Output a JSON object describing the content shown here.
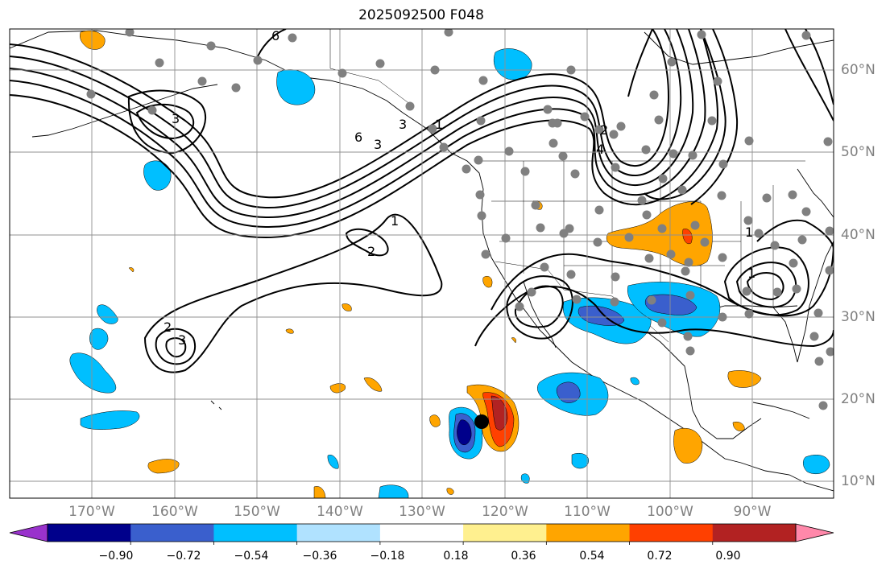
{
  "title": "2025092500 F048",
  "lat_labels": [
    "60°N",
    "50°N",
    "40°N",
    "30°N",
    "20°N",
    "10°N"
  ],
  "lon_labels": [
    "170°W",
    "160°W",
    "150°W",
    "140°W",
    "130°W",
    "120°W",
    "110°W",
    "100°W",
    "90°W"
  ],
  "colorbar": {
    "ticks": [
      "−0.90",
      "−0.72",
      "−0.54",
      "−0.36",
      "−0.18",
      "0.18",
      "0.36",
      "0.54",
      "0.72",
      "0.90"
    ],
    "colors": [
      "#9932cc",
      "#00008b",
      "#3a5fcd",
      "#00bfff",
      "#b0e2ff",
      "#ffffff",
      "#fff08f",
      "#ffa500",
      "#ff4000",
      "#b22222",
      "#ff88aa"
    ]
  },
  "contour_labels": [
    "6",
    "3",
    "3",
    "6",
    "3",
    "1",
    "2",
    "2",
    "3",
    "1",
    "4",
    "2",
    "1",
    "1"
  ],
  "map_extent": {
    "lon": [
      -180,
      -80
    ],
    "lat": [
      8,
      65
    ]
  }
}
